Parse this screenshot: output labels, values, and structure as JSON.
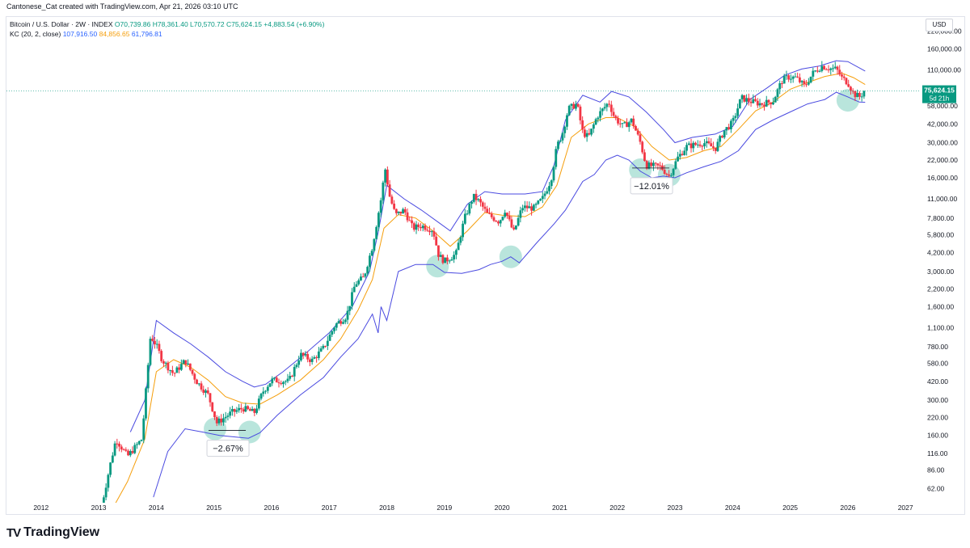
{
  "header": {
    "attribution": "Cantonese_Cat created with TradingView.com, Apr 21, 2026 03:10 UTC",
    "symbol": "Bitcoin / U.S. Dollar · 2W · INDEX",
    "open": "O70,739.86",
    "high": "H78,361.40",
    "low": "L70,570.72",
    "close": "C75,624.15",
    "change": "+4,883.54 (+6.90%)",
    "indicator": "KC (20, 2, close)",
    "kc_upper": "107,916.50",
    "kc_middle": "84,856.65",
    "kc_lower": "61,796.81"
  },
  "currency": "USD",
  "price_tag": {
    "price": "75,624.15",
    "countdown": "5d 21h"
  },
  "footer": {
    "brand": "TradingView"
  },
  "colors": {
    "up": "#089981",
    "down": "#f23645",
    "kc_band": "#4a4ae0",
    "kc_mid": "#f59e0b",
    "marker": "#7fcfc0"
  },
  "chart_data": {
    "type": "candlestick",
    "title": "Bitcoin / U.S. Dollar · 2W · INDEX",
    "scale": "log",
    "xlim": [
      2011.4,
      2027.25
    ],
    "ylim": [
      48,
      280000
    ],
    "y_ticks": [
      {
        "v": 220000,
        "label": "220,000.00"
      },
      {
        "v": 160000,
        "label": "160,000.00"
      },
      {
        "v": 110000,
        "label": "110,000.00"
      },
      {
        "v": 58000,
        "label": "58,000.00"
      },
      {
        "v": 42000,
        "label": "42,000.00"
      },
      {
        "v": 30000,
        "label": "30,000.00"
      },
      {
        "v": 22000,
        "label": "22,000.00"
      },
      {
        "v": 16000,
        "label": "16,000.00"
      },
      {
        "v": 11000,
        "label": "11,000.00"
      },
      {
        "v": 7800,
        "label": "7,800.00"
      },
      {
        "v": 5800,
        "label": "5,800.00"
      },
      {
        "v": 4200,
        "label": "4,200.00"
      },
      {
        "v": 3000,
        "label": "3,000.00"
      },
      {
        "v": 2200,
        "label": "2,200.00"
      },
      {
        "v": 1600,
        "label": "1,600.00"
      },
      {
        "v": 1100,
        "label": "1,100.00"
      },
      {
        "v": 780,
        "label": "780.00"
      },
      {
        "v": 580,
        "label": "580.00"
      },
      {
        "v": 420,
        "label": "420.00"
      },
      {
        "v": 300,
        "label": "300.00"
      },
      {
        "v": 220,
        "label": "220.00"
      },
      {
        "v": 160,
        "label": "160.00"
      },
      {
        "v": 116,
        "label": "116.00"
      },
      {
        "v": 86,
        "label": "86.00"
      },
      {
        "v": 62,
        "label": "62.00"
      }
    ],
    "x_ticks": [
      {
        "v": 2012,
        "label": "2012"
      },
      {
        "v": 2013,
        "label": "2013"
      },
      {
        "v": 2014,
        "label": "2014"
      },
      {
        "v": 2015,
        "label": "2015"
      },
      {
        "v": 2016,
        "label": "2016"
      },
      {
        "v": 2017,
        "label": "2017"
      },
      {
        "v": 2018,
        "label": "2018"
      },
      {
        "v": 2019,
        "label": "2019"
      },
      {
        "v": 2020,
        "label": "2020"
      },
      {
        "v": 2021,
        "label": "2021"
      },
      {
        "v": 2022,
        "label": "2022"
      },
      {
        "v": 2023,
        "label": "2023"
      },
      {
        "v": 2024,
        "label": "2024"
      },
      {
        "v": 2025,
        "label": "2025"
      },
      {
        "v": 2026,
        "label": "2026"
      },
      {
        "v": 2027,
        "label": "2027"
      }
    ],
    "last_price": 75624.15,
    "price_path": [
      [
        2013.05,
        45
      ],
      [
        2013.2,
        95
      ],
      [
        2013.3,
        150
      ],
      [
        2013.5,
        110
      ],
      [
        2013.75,
        150
      ],
      [
        2013.9,
        950
      ],
      [
        2014.0,
        800
      ],
      [
        2014.1,
        620
      ],
      [
        2014.3,
        480
      ],
      [
        2014.5,
        610
      ],
      [
        2014.7,
        420
      ],
      [
        2014.9,
        330
      ],
      [
        2015.05,
        200
      ],
      [
        2015.3,
        240
      ],
      [
        2015.5,
        260
      ],
      [
        2015.7,
        240
      ],
      [
        2015.85,
        350
      ],
      [
        2016.0,
        430
      ],
      [
        2016.3,
        420
      ],
      [
        2016.5,
        680
      ],
      [
        2016.7,
        610
      ],
      [
        2016.9,
        760
      ],
      [
        2017.1,
        1150
      ],
      [
        2017.3,
        1350
      ],
      [
        2017.45,
        2400
      ],
      [
        2017.6,
        2700
      ],
      [
        2017.75,
        4700
      ],
      [
        2017.9,
        11000
      ],
      [
        2017.97,
        19000
      ],
      [
        2018.05,
        11500
      ],
      [
        2018.15,
        8200
      ],
      [
        2018.3,
        9000
      ],
      [
        2018.45,
        6500
      ],
      [
        2018.6,
        6800
      ],
      [
        2018.8,
        6300
      ],
      [
        2018.9,
        4000
      ],
      [
        2019.0,
        3600
      ],
      [
        2019.2,
        4100
      ],
      [
        2019.35,
        7800
      ],
      [
        2019.5,
        11500
      ],
      [
        2019.6,
        10500
      ],
      [
        2019.75,
        8300
      ],
      [
        2019.95,
        7300
      ],
      [
        2020.05,
        9000
      ],
      [
        2020.2,
        6000
      ],
      [
        2020.35,
        9500
      ],
      [
        2020.55,
        9300
      ],
      [
        2020.7,
        11000
      ],
      [
        2020.85,
        15500
      ],
      [
        2020.95,
        28000
      ],
      [
        2021.05,
        36000
      ],
      [
        2021.15,
        55000
      ],
      [
        2021.3,
        60000
      ],
      [
        2021.4,
        36000
      ],
      [
        2021.5,
        33000
      ],
      [
        2021.65,
        48000
      ],
      [
        2021.85,
        62000
      ],
      [
        2021.95,
        47000
      ],
      [
        2022.1,
        40000
      ],
      [
        2022.25,
        45000
      ],
      [
        2022.4,
        30000
      ],
      [
        2022.5,
        20000
      ],
      [
        2022.75,
        19500
      ],
      [
        2022.9,
        16500
      ],
      [
        2023.05,
        23000
      ],
      [
        2023.2,
        28000
      ],
      [
        2023.5,
        30000
      ],
      [
        2023.7,
        27000
      ],
      [
        2023.85,
        37000
      ],
      [
        2024.0,
        43000
      ],
      [
        2024.15,
        67000
      ],
      [
        2024.3,
        63000
      ],
      [
        2024.5,
        60000
      ],
      [
        2024.7,
        63000
      ],
      [
        2024.85,
        90000
      ],
      [
        2024.95,
        97000
      ],
      [
        2025.1,
        96000
      ],
      [
        2025.25,
        82000
      ],
      [
        2025.4,
        105000
      ],
      [
        2025.55,
        118000
      ],
      [
        2025.7,
        113000
      ],
      [
        2025.8,
        112000
      ],
      [
        2025.9,
        95000
      ],
      [
        2026.0,
        88000
      ],
      [
        2026.1,
        72000
      ],
      [
        2026.2,
        68000
      ],
      [
        2026.3,
        75624
      ]
    ],
    "kc_upper_path": [
      [
        2013.55,
        170
      ],
      [
        2013.8,
        300
      ],
      [
        2014.0,
        1250
      ],
      [
        2014.3,
        1000
      ],
      [
        2014.6,
        820
      ],
      [
        2014.9,
        650
      ],
      [
        2015.2,
        500
      ],
      [
        2015.5,
        420
      ],
      [
        2015.7,
        380
      ],
      [
        2015.9,
        400
      ],
      [
        2016.2,
        500
      ],
      [
        2016.6,
        700
      ],
      [
        2017.0,
        1000
      ],
      [
        2017.4,
        1600
      ],
      [
        2017.7,
        3000
      ],
      [
        2017.85,
        6000
      ],
      [
        2018.0,
        14000
      ],
      [
        2018.3,
        11000
      ],
      [
        2018.6,
        9000
      ],
      [
        2018.9,
        7200
      ],
      [
        2019.1,
        6200
      ],
      [
        2019.4,
        10000
      ],
      [
        2019.7,
        12500
      ],
      [
        2020.0,
        12000
      ],
      [
        2020.4,
        12000
      ],
      [
        2020.7,
        12500
      ],
      [
        2020.9,
        20000
      ],
      [
        2021.1,
        45000
      ],
      [
        2021.4,
        70000
      ],
      [
        2021.7,
        62000
      ],
      [
        2021.9,
        75000
      ],
      [
        2022.2,
        68000
      ],
      [
        2022.5,
        52000
      ],
      [
        2022.8,
        38000
      ],
      [
        2023.0,
        30000
      ],
      [
        2023.3,
        33000
      ],
      [
        2023.7,
        35000
      ],
      [
        2024.0,
        40000
      ],
      [
        2024.3,
        65000
      ],
      [
        2024.6,
        80000
      ],
      [
        2024.9,
        100000
      ],
      [
        2025.2,
        112000
      ],
      [
        2025.5,
        118000
      ],
      [
        2025.8,
        130000
      ],
      [
        2026.0,
        128000
      ],
      [
        2026.3,
        108000
      ]
    ],
    "kc_middle_path": [
      [
        2013.2,
        40
      ],
      [
        2013.5,
        70
      ],
      [
        2013.8,
        150
      ],
      [
        2014.0,
        500
      ],
      [
        2014.3,
        620
      ],
      [
        2014.6,
        540
      ],
      [
        2014.9,
        430
      ],
      [
        2015.2,
        320
      ],
      [
        2015.5,
        285
      ],
      [
        2015.8,
        280
      ],
      [
        2016.1,
        330
      ],
      [
        2016.5,
        430
      ],
      [
        2016.9,
        620
      ],
      [
        2017.2,
        900
      ],
      [
        2017.5,
        1500
      ],
      [
        2017.75,
        2600
      ],
      [
        2017.95,
        6500
      ],
      [
        2018.2,
        8300
      ],
      [
        2018.5,
        7800
      ],
      [
        2018.8,
        6200
      ],
      [
        2019.1,
        4700
      ],
      [
        2019.4,
        6200
      ],
      [
        2019.7,
        8600
      ],
      [
        2020.0,
        8200
      ],
      [
        2020.4,
        8000
      ],
      [
        2020.7,
        9500
      ],
      [
        2020.95,
        14000
      ],
      [
        2021.2,
        33000
      ],
      [
        2021.5,
        42000
      ],
      [
        2021.8,
        47000
      ],
      [
        2022.0,
        47000
      ],
      [
        2022.3,
        40000
      ],
      [
        2022.6,
        28000
      ],
      [
        2022.9,
        22000
      ],
      [
        2023.2,
        23000
      ],
      [
        2023.5,
        26000
      ],
      [
        2023.8,
        28000
      ],
      [
        2024.1,
        38000
      ],
      [
        2024.4,
        53000
      ],
      [
        2024.7,
        62000
      ],
      [
        2025.0,
        78000
      ],
      [
        2025.3,
        88000
      ],
      [
        2025.6,
        98000
      ],
      [
        2025.9,
        104000
      ],
      [
        2026.1,
        96000
      ],
      [
        2026.3,
        84856
      ]
    ],
    "kc_lower_path": [
      [
        2013.95,
        53
      ],
      [
        2014.2,
        120
      ],
      [
        2014.5,
        180
      ],
      [
        2014.8,
        170
      ],
      [
        2015.1,
        160
      ],
      [
        2015.4,
        155
      ],
      [
        2015.6,
        152
      ],
      [
        2015.8,
        168
      ],
      [
        2016.1,
        230
      ],
      [
        2016.5,
        330
      ],
      [
        2016.9,
        450
      ],
      [
        2017.2,
        650
      ],
      [
        2017.5,
        900
      ],
      [
        2017.75,
        1400
      ],
      [
        2017.85,
        1000
      ],
      [
        2017.9,
        1600
      ],
      [
        2018.0,
        1250
      ],
      [
        2018.2,
        3000
      ],
      [
        2018.5,
        3400
      ],
      [
        2018.8,
        3400
      ],
      [
        2019.0,
        2950
      ],
      [
        2019.3,
        2900
      ],
      [
        2019.6,
        3100
      ],
      [
        2019.8,
        3400
      ],
      [
        2020.0,
        3600
      ],
      [
        2020.15,
        3900
      ],
      [
        2020.3,
        3500
      ],
      [
        2020.6,
        5000
      ],
      [
        2020.9,
        7000
      ],
      [
        2021.1,
        9000
      ],
      [
        2021.4,
        15000
      ],
      [
        2021.6,
        17000
      ],
      [
        2021.8,
        22000
      ],
      [
        2022.0,
        24000
      ],
      [
        2022.2,
        22000
      ],
      [
        2022.4,
        18000
      ],
      [
        2022.6,
        16000
      ],
      [
        2022.8,
        16500
      ],
      [
        2023.0,
        16000
      ],
      [
        2023.2,
        17500
      ],
      [
        2023.5,
        19500
      ],
      [
        2023.8,
        21500
      ],
      [
        2024.1,
        26000
      ],
      [
        2024.4,
        38000
      ],
      [
        2024.7,
        45000
      ],
      [
        2025.0,
        52000
      ],
      [
        2025.3,
        60000
      ],
      [
        2025.6,
        65000
      ],
      [
        2025.8,
        74000
      ],
      [
        2026.0,
        68000
      ],
      [
        2026.2,
        62000
      ],
      [
        2026.3,
        61796
      ]
    ],
    "markers": [
      {
        "x": 2015.02,
        "y": 180
      },
      {
        "x": 2015.62,
        "y": 170
      },
      {
        "x": 2018.88,
        "y": 3300
      },
      {
        "x": 2020.15,
        "y": 3900
      },
      {
        "x": 2022.4,
        "y": 18500
      },
      {
        "x": 2022.9,
        "y": 16800
      },
      {
        "x": 2026.0,
        "y": 64000
      }
    ],
    "annotations": [
      {
        "label": "−2.67%",
        "x": 2015.3,
        "y": 165
      },
      {
        "label": "−12.01%",
        "x": 2022.65,
        "y": 18000
      }
    ]
  }
}
